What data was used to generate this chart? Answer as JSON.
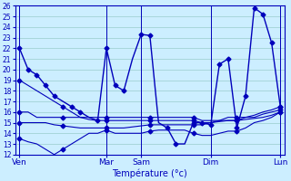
{
  "xlabel": "Température (°c)",
  "bg_color": "#cceeff",
  "grid_color": "#99cccc",
  "line_color": "#0000bb",
  "ylim": [
    12,
    26
  ],
  "yticks": [
    12,
    13,
    14,
    15,
    16,
    17,
    18,
    19,
    20,
    21,
    22,
    23,
    24,
    25,
    26
  ],
  "day_labels": [
    "Ven",
    "Mar",
    "Sam",
    "Dim",
    "Lun"
  ],
  "day_positions": [
    0,
    10,
    14,
    22,
    30
  ],
  "xlim": [
    -0.5,
    30.5
  ],
  "series": [
    {
      "x": [
        0,
        1,
        2,
        3,
        4,
        5,
        6,
        7,
        8,
        9,
        10,
        11,
        12,
        13,
        14,
        15,
        16,
        17,
        18,
        19,
        20,
        21,
        22,
        23,
        24,
        25,
        26,
        27,
        28,
        29,
        30
      ],
      "y": [
        22,
        20,
        19.5,
        18.5,
        17.5,
        17,
        16.5,
        16,
        15.5,
        15.2,
        22,
        18.5,
        18,
        21,
        23.3,
        23.2,
        15,
        14.5,
        13,
        13,
        15,
        15,
        14.8,
        20.5,
        21,
        14.5,
        17.5,
        25.8,
        25.2,
        22.5,
        16.5
      ],
      "marker": "D",
      "markersize": 2.5,
      "lw": 1.0
    },
    {
      "x": [
        0,
        1,
        2,
        3,
        4,
        5,
        6,
        7,
        8,
        9,
        10,
        11,
        12,
        13,
        14,
        15,
        16,
        17,
        18,
        19,
        20,
        21,
        22,
        23,
        24,
        25,
        26,
        27,
        28,
        29,
        30
      ],
      "y": [
        15,
        15,
        15,
        15,
        14.8,
        14.7,
        14.6,
        14.5,
        14.5,
        14.5,
        14.5,
        14.5,
        14.5,
        14.6,
        14.7,
        14.8,
        14.8,
        14.8,
        14.8,
        14.8,
        14.8,
        14.8,
        15,
        15.1,
        15.2,
        15.2,
        15.3,
        15.4,
        15.5,
        15.7,
        16
      ],
      "marker": "D",
      "markersize": 2.5,
      "lw": 0.8
    },
    {
      "x": [
        0,
        1,
        2,
        3,
        4,
        5,
        6,
        7,
        8,
        9,
        10,
        11,
        12,
        13,
        14,
        15,
        16,
        17,
        18,
        19,
        20,
        21,
        22,
        23,
        24,
        25,
        26,
        27,
        28,
        29,
        30
      ],
      "y": [
        13.5,
        13.2,
        13,
        12.5,
        12,
        12.5,
        13,
        13.5,
        14,
        14,
        14.3,
        14,
        14,
        14,
        14,
        14.2,
        14.3,
        14.3,
        14.3,
        14.3,
        14,
        13.8,
        13.8,
        14,
        14.2,
        14.2,
        14.5,
        15,
        15.2,
        15.5,
        16
      ],
      "marker": "D",
      "markersize": 2.5,
      "lw": 0.8
    },
    {
      "x": [
        0,
        1,
        2,
        3,
        4,
        5,
        6,
        7,
        8,
        9,
        10,
        11,
        12,
        13,
        14,
        15,
        16,
        17,
        18,
        19,
        20,
        21,
        22,
        23,
        24,
        25,
        26,
        27,
        28,
        29,
        30
      ],
      "y": [
        19,
        18.5,
        18,
        17.5,
        17,
        16.5,
        16,
        15.5,
        15.3,
        15.2,
        15.2,
        15.2,
        15.2,
        15.2,
        15.2,
        15.2,
        15.2,
        15.2,
        15.2,
        15.2,
        15.2,
        15.0,
        15.0,
        15.2,
        15.5,
        15.5,
        15.5,
        15.7,
        16,
        16.2,
        16.5
      ],
      "marker": "D",
      "markersize": 2.5,
      "lw": 0.8
    },
    {
      "x": [
        0,
        1,
        2,
        3,
        4,
        5,
        6,
        7,
        8,
        9,
        10,
        11,
        12,
        13,
        14,
        15,
        16,
        17,
        18,
        19,
        20,
        21,
        22,
        23,
        24,
        25,
        26,
        27,
        28,
        29,
        30
      ],
      "y": [
        16,
        16,
        15.5,
        15.5,
        15.5,
        15.5,
        15.5,
        15.5,
        15.5,
        15.5,
        15.5,
        15.5,
        15.5,
        15.5,
        15.5,
        15.5,
        15.5,
        15.5,
        15.5,
        15.5,
        15.5,
        15.2,
        15.2,
        15.2,
        15.2,
        15.2,
        15.5,
        15.5,
        15.8,
        16,
        16.2
      ],
      "marker": "D",
      "markersize": 2.5,
      "lw": 0.8
    }
  ],
  "marker_positions": {
    "0": [
      0,
      1,
      2,
      3,
      4,
      6,
      7,
      9,
      10,
      11,
      12,
      14,
      15,
      17,
      18,
      20,
      21,
      22,
      23,
      24,
      25,
      26,
      27,
      28,
      29,
      30
    ],
    "1": [
      0,
      5,
      10,
      15,
      20,
      25,
      30
    ],
    "2": [
      0,
      5,
      10,
      15,
      20,
      25,
      30
    ],
    "3": [
      0,
      5,
      10,
      15,
      20,
      25,
      30
    ],
    "4": [
      0,
      5,
      10,
      15,
      20,
      25,
      30
    ]
  }
}
